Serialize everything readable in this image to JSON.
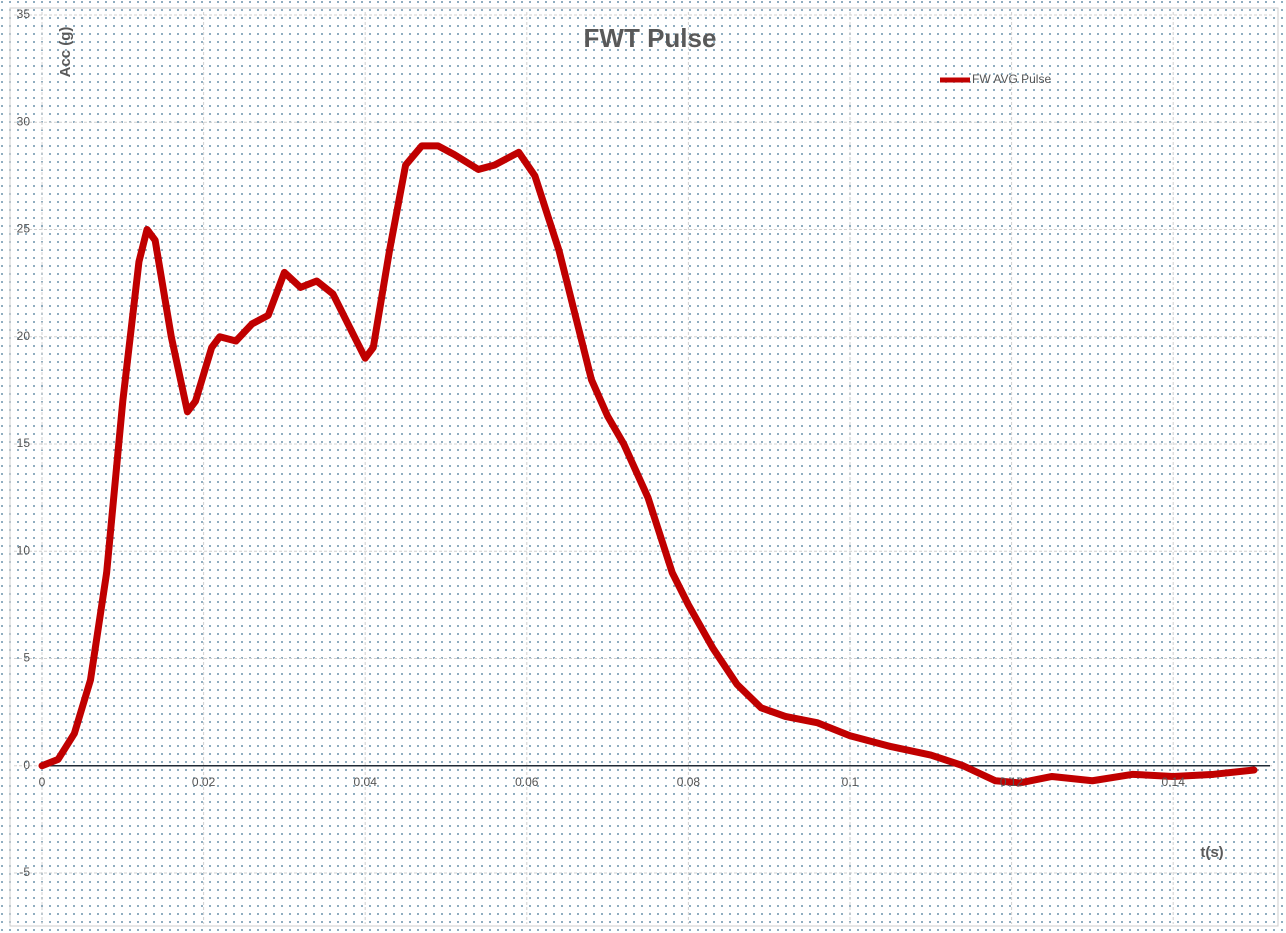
{
  "chart_data": {
    "type": "line",
    "title": "FWT Pulse",
    "x_label": "t(s)",
    "y_label": "Acc (g)",
    "x": [
      0,
      0.002,
      0.004,
      0.006,
      0.008,
      0.01,
      0.012,
      0.013,
      0.014,
      0.016,
      0.018,
      0.019,
      0.021,
      0.022,
      0.024,
      0.026,
      0.028,
      0.03,
      0.032,
      0.034,
      0.036,
      0.038,
      0.04,
      0.041,
      0.043,
      0.045,
      0.047,
      0.049,
      0.051,
      0.054,
      0.056,
      0.059,
      0.061,
      0.064,
      0.066,
      0.068,
      0.07,
      0.072,
      0.075,
      0.078,
      0.08,
      0.083,
      0.086,
      0.089,
      0.092,
      0.096,
      0.1,
      0.105,
      0.11,
      0.114,
      0.118,
      0.121,
      0.125,
      0.13,
      0.135,
      0.14,
      0.145,
      0.15
    ],
    "series": [
      {
        "name": "FW AVG Pulse",
        "color": "#c00000",
        "values": [
          0,
          0.3,
          1.5,
          4,
          9,
          17,
          23.5,
          25,
          24.5,
          20,
          16.5,
          17,
          19.5,
          20,
          19.8,
          20.6,
          21,
          23,
          22.3,
          22.6,
          22,
          20.5,
          19,
          19.5,
          24,
          28,
          28.9,
          28.9,
          28.5,
          27.8,
          28,
          28.6,
          27.5,
          24,
          21,
          18,
          16.3,
          15,
          12.5,
          9,
          7.5,
          5.5,
          3.8,
          2.7,
          2.3,
          2,
          1.4,
          0.9,
          0.5,
          0,
          -0.7,
          -0.8,
          -0.5,
          -0.7,
          -0.4,
          -0.5,
          -0.4,
          -0.2
        ]
      }
    ],
    "xlim": [
      0,
      0.15
    ],
    "xticks": [
      0,
      0.02,
      0.04,
      0.06,
      0.08,
      0.1,
      0.12,
      0.14
    ],
    "ylim": [
      -5,
      35
    ],
    "yticks": [
      -5,
      0,
      5,
      10,
      15,
      20,
      25,
      30,
      35
    ],
    "grid": true,
    "legend": "top-right"
  }
}
